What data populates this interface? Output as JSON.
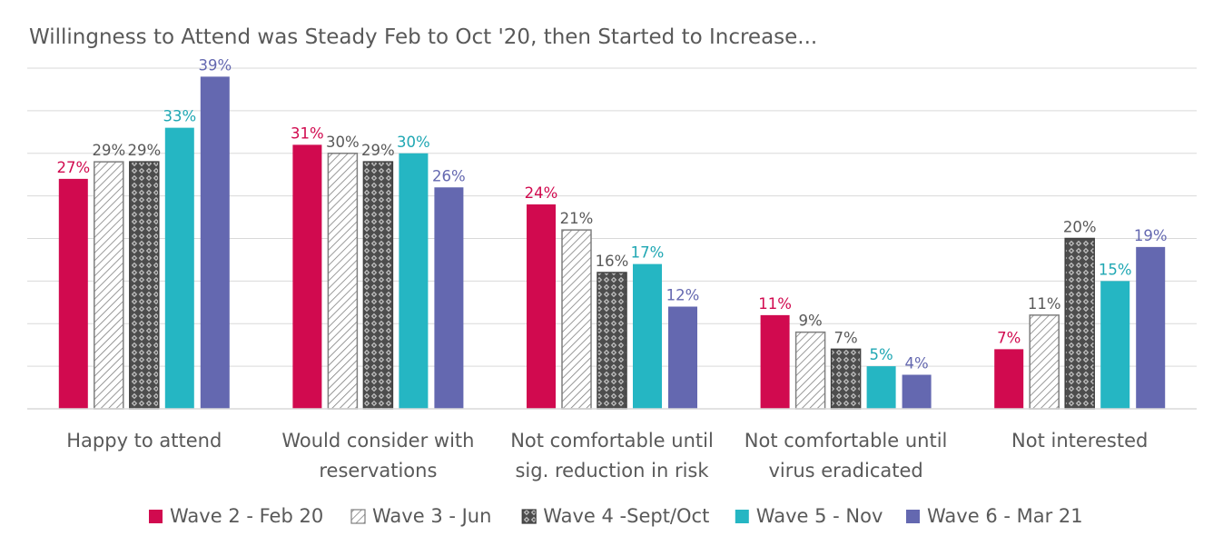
{
  "chart_data": {
    "type": "bar",
    "title": "Willingness to Attend was Steady Feb to Oct '20, then Started to Increase...",
    "xlabel": "",
    "ylabel": "",
    "ylim": [
      0,
      40
    ],
    "grid": true,
    "legend_position": "bottom",
    "categories": [
      [
        "Happy to attend"
      ],
      [
        "Would consider with",
        "reservations"
      ],
      [
        "Not comfortable until",
        "sig. reduction in risk"
      ],
      [
        "Not comfortable until",
        "virus eradicated"
      ],
      [
        "Not interested"
      ]
    ],
    "series": [
      {
        "name": "Wave 2 - Feb 20",
        "values": [
          27,
          31,
          24,
          11,
          7
        ],
        "labels": [
          "27%",
          "31%",
          "24%",
          "11%",
          "7%"
        ],
        "color": "#D10A4F",
        "label_color": "#D10A4F",
        "pattern": "solid"
      },
      {
        "name": "Wave 3 - Jun",
        "values": [
          29,
          30,
          21,
          9,
          11
        ],
        "labels": [
          "29%",
          "30%",
          "21%",
          "9%",
          "11%"
        ],
        "color": "#FFFFFF",
        "label_color": "#595959",
        "pattern": "diagonal"
      },
      {
        "name": "Wave 4 -Sept/Oct",
        "values": [
          29,
          29,
          16,
          7,
          20
        ],
        "labels": [
          "29%",
          "29%",
          "16%",
          "7%",
          "20%"
        ],
        "color": "#555555",
        "label_color": "#595959",
        "pattern": "lattice"
      },
      {
        "name": "Wave 5 - Nov",
        "values": [
          33,
          30,
          17,
          5,
          15
        ],
        "labels": [
          "33%",
          "30%",
          "17%",
          "5%",
          "15%"
        ],
        "color": "#25B6C3",
        "label_color": "#1FA7B3",
        "pattern": "solid"
      },
      {
        "name": "Wave 6 - Mar 21",
        "values": [
          39,
          26,
          12,
          4,
          19
        ],
        "labels": [
          "39%",
          "26%",
          "12%",
          "4%",
          "19%"
        ],
        "color": "#6468B0",
        "label_color": "#6468B0",
        "pattern": "solid"
      }
    ]
  }
}
